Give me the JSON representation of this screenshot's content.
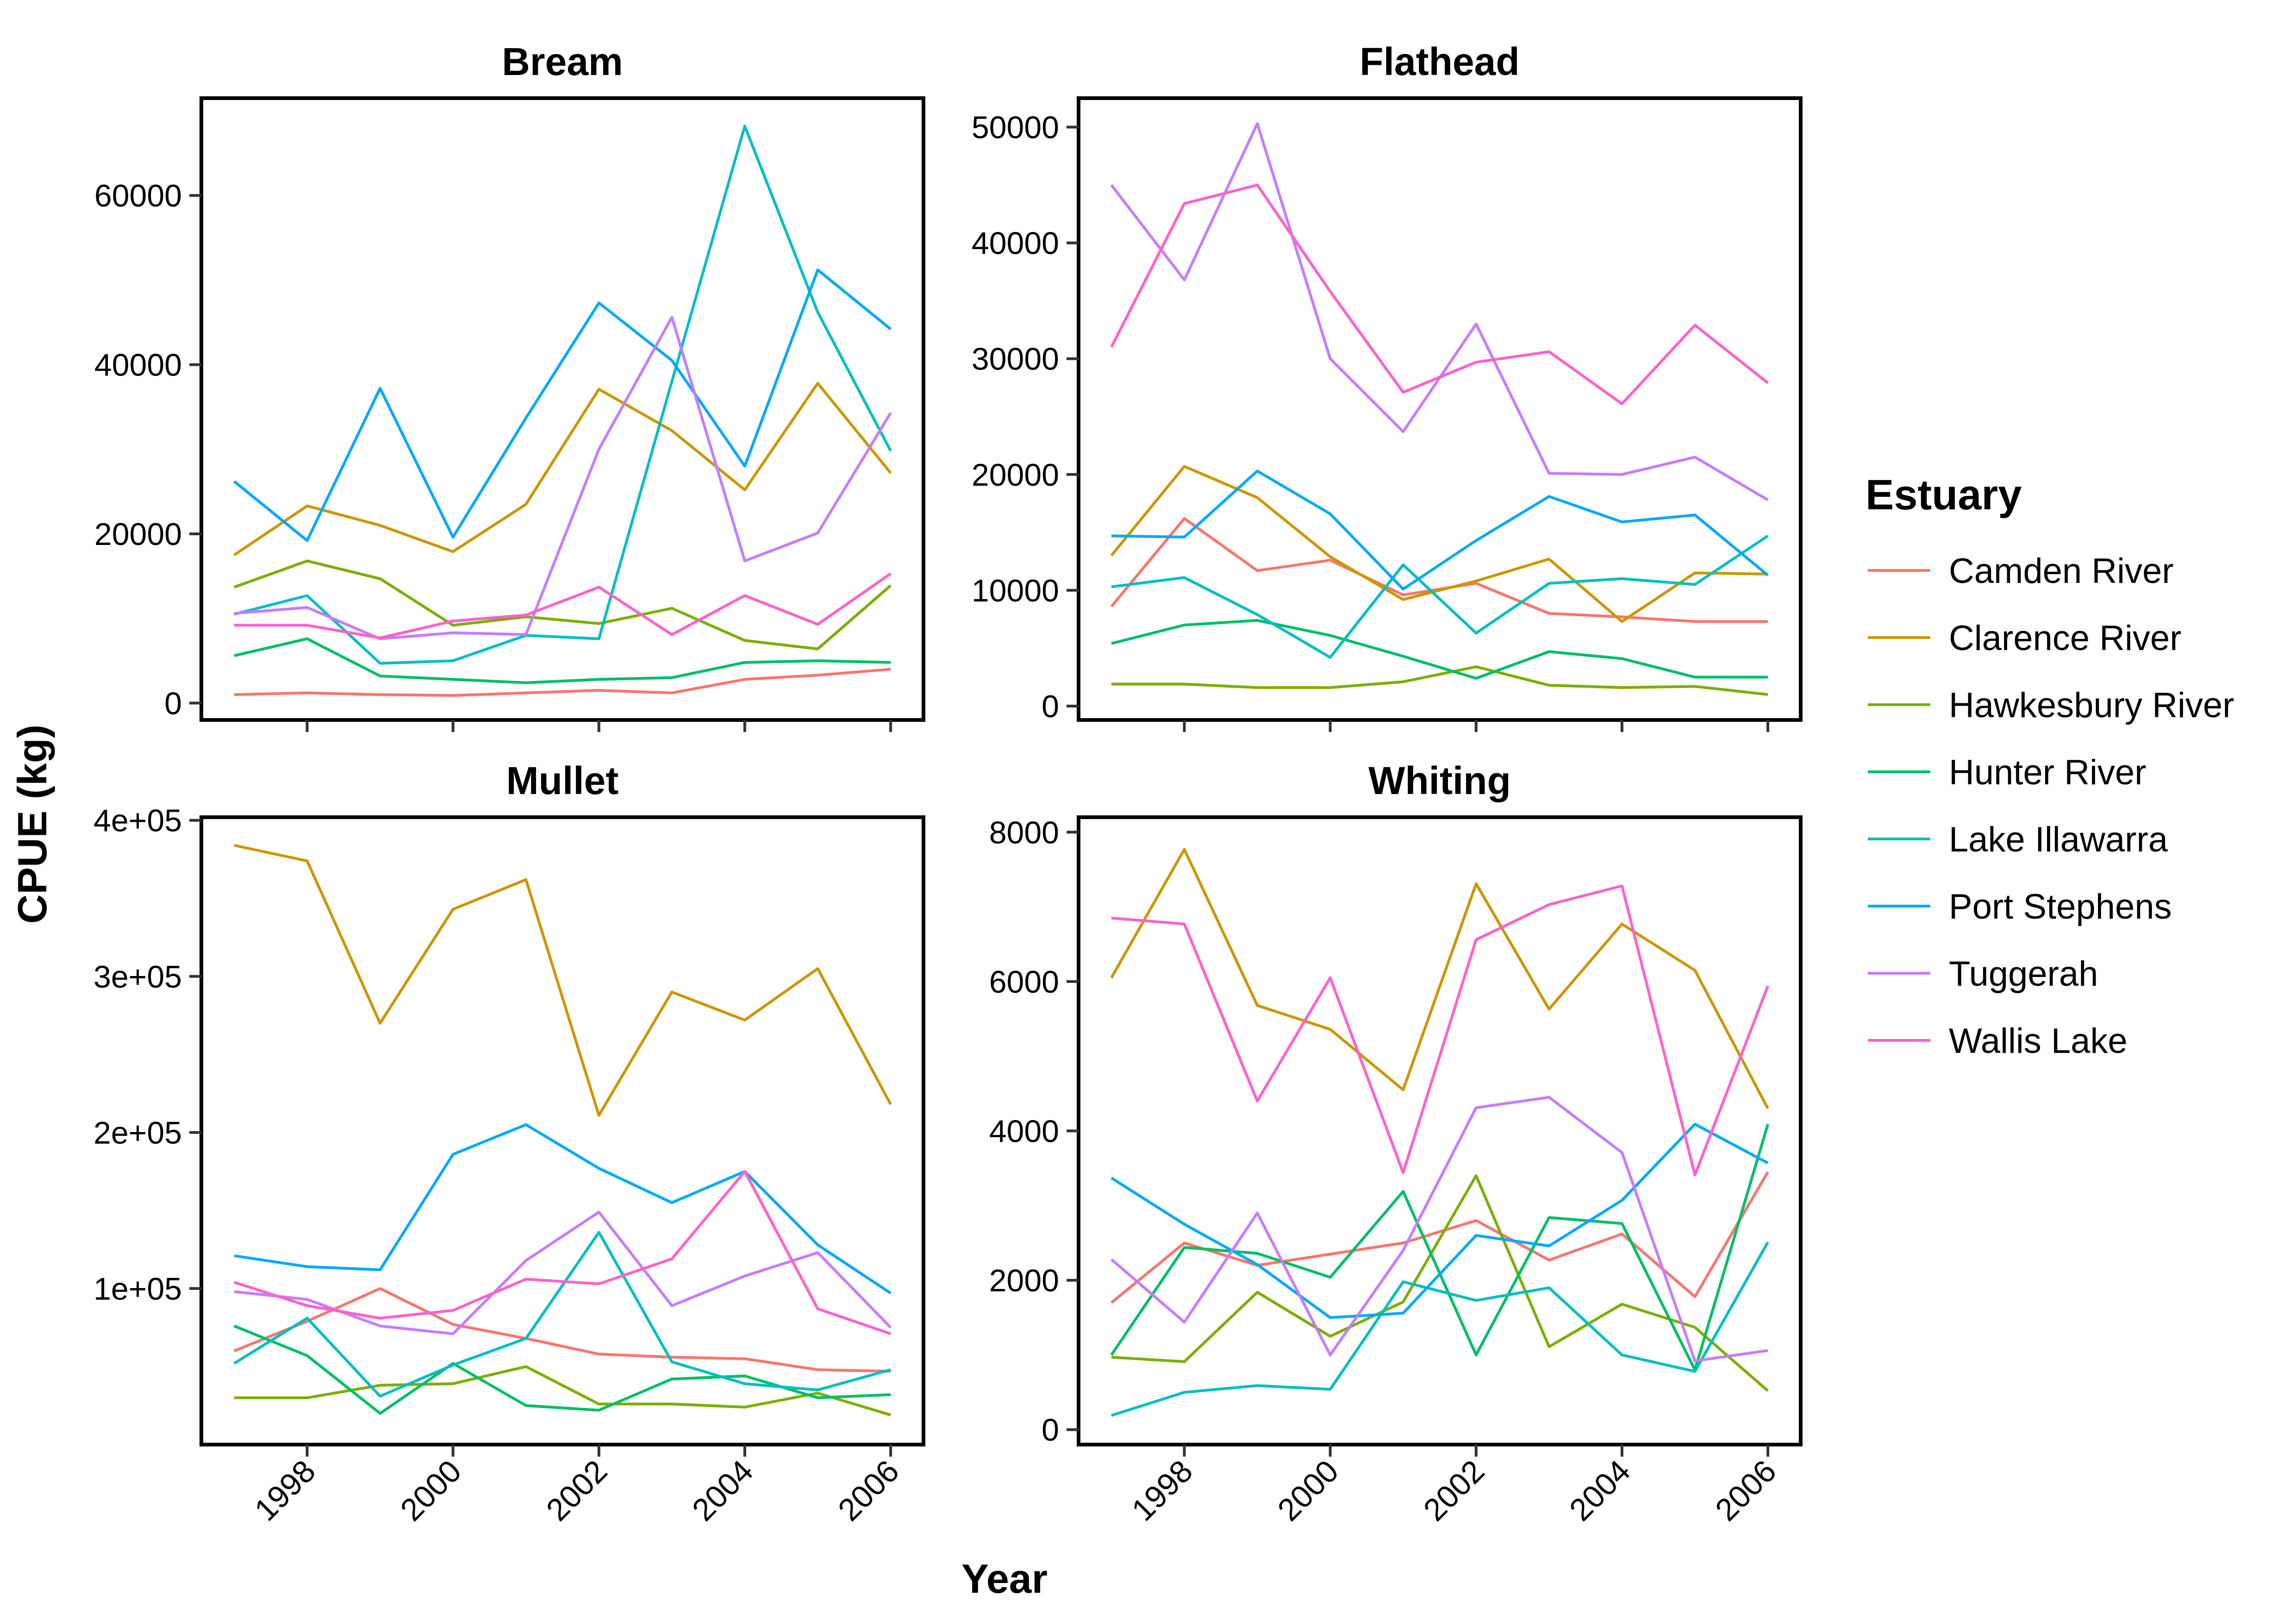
{
  "chart_data": {
    "type": "line",
    "xlabel": "Year",
    "ylabel": "CPUE (kg)",
    "legend": {
      "title": "Estuary",
      "placement": "right"
    },
    "series_meta": [
      {
        "name": "Camden River",
        "color": "#F8766D"
      },
      {
        "name": "Clarence River",
        "color": "#CD9600"
      },
      {
        "name": "Hawkesbury River",
        "color": "#7CAE00"
      },
      {
        "name": "Hunter River",
        "color": "#00BE67"
      },
      {
        "name": "Lake Illawarra",
        "color": "#00BFC4"
      },
      {
        "name": "Port Stephens",
        "color": "#00A9FF"
      },
      {
        "name": "Tuggerah",
        "color": "#C77CFF"
      },
      {
        "name": "Wallis Lake",
        "color": "#FF61CC"
      }
    ],
    "x": [
      1997,
      1998,
      1999,
      2000,
      2001,
      2002,
      2003,
      2004,
      2005,
      2006
    ],
    "x_ticks": [
      1998,
      2000,
      2002,
      2004,
      2006
    ],
    "grid": false,
    "panels": [
      {
        "title": "Bream",
        "ylim": [
          -2000,
          71500
        ],
        "y_ticks": [
          0,
          20000,
          40000,
          60000
        ],
        "y_tick_labels": [
          "0",
          "20000",
          "40000",
          "60000"
        ],
        "series": [
          {
            "name": "Camden River",
            "values": [
              1000,
              1200,
              1000,
              900,
              1200,
              1500,
              1200,
              2800,
              3300,
              4000
            ]
          },
          {
            "name": "Clarence River",
            "values": [
              17500,
              23300,
              21000,
              17900,
              23500,
              37100,
              32200,
              25200,
              37800,
              27200
            ]
          },
          {
            "name": "Hawkesbury River",
            "values": [
              13700,
              16800,
              14700,
              9200,
              10200,
              9400,
              11200,
              7400,
              6400,
              13900
            ]
          },
          {
            "name": "Hunter River",
            "values": [
              5600,
              7600,
              3200,
              2800,
              2400,
              2800,
              3000,
              4800,
              5000,
              4800
            ]
          },
          {
            "name": "Lake Illawarra",
            "values": [
              10500,
              12700,
              4700,
              5000,
              8000,
              7600,
              38000,
              68200,
              46200,
              29800
            ]
          },
          {
            "name": "Port Stephens",
            "values": [
              26200,
              19200,
              37200,
              19600,
              33700,
              47300,
              40500,
              28000,
              51200,
              44200
            ]
          },
          {
            "name": "Tuggerah",
            "values": [
              10600,
              11300,
              7600,
              8300,
              8100,
              30000,
              45600,
              16800,
              20100,
              34300
            ]
          },
          {
            "name": "Wallis Lake",
            "values": [
              9200,
              9200,
              7700,
              9700,
              10400,
              13700,
              8100,
              12700,
              9300,
              15300
            ]
          }
        ]
      },
      {
        "title": "Flathead",
        "ylim": [
          -1200,
          52500
        ],
        "y_ticks": [
          0,
          10000,
          20000,
          30000,
          40000,
          50000
        ],
        "y_tick_labels": [
          "0",
          "10000",
          "20000",
          "30000",
          "40000",
          "50000"
        ],
        "series": [
          {
            "name": "Camden River",
            "values": [
              8600,
              16200,
              11700,
              12600,
              9600,
              10600,
              8000,
              7700,
              7300,
              7300
            ]
          },
          {
            "name": "Clarence River",
            "values": [
              13000,
              20700,
              18000,
              12900,
              9200,
              10800,
              12700,
              7300,
              11500,
              11400
            ]
          },
          {
            "name": "Hawkesbury River",
            "values": [
              1900,
              1900,
              1600,
              1600,
              2100,
              3400,
              1800,
              1600,
              1700,
              1000
            ]
          },
          {
            "name": "Hunter River",
            "values": [
              5400,
              7000,
              7400,
              6100,
              4300,
              2400,
              4700,
              4100,
              2500,
              2500
            ]
          },
          {
            "name": "Lake Illawarra",
            "values": [
              10300,
              11100,
              7900,
              4200,
              12200,
              6300,
              10600,
              11000,
              10500,
              14700
            ]
          },
          {
            "name": "Port Stephens",
            "values": [
              14700,
              14600,
              20300,
              16600,
              10100,
              14300,
              18100,
              15900,
              16500,
              11300
            ]
          },
          {
            "name": "Tuggerah",
            "values": [
              45000,
              36800,
              50300,
              30000,
              23700,
              33000,
              20100,
              20000,
              21500,
              17800
            ]
          },
          {
            "name": "Wallis Lake",
            "values": [
              31000,
              43400,
              45000,
              35800,
              27100,
              29700,
              30600,
              26100,
              32900,
              27900
            ]
          }
        ]
      },
      {
        "title": "Mullet",
        "ylim": [
          0,
          402000
        ],
        "y_ticks": [
          100000,
          200000,
          300000,
          400000
        ],
        "y_tick_labels": [
          "1e+05",
          "2e+05",
          "3e+05",
          "4e+05"
        ],
        "series": [
          {
            "name": "Camden River",
            "values": [
              60000,
              79000,
              100000,
              77000,
              68000,
              58000,
              56000,
              55000,
              48000,
              47000
            ]
          },
          {
            "name": "Clarence River",
            "values": [
              384000,
              374000,
              270000,
              343000,
              362000,
              211000,
              290000,
              272000,
              305000,
              218000
            ]
          },
          {
            "name": "Hawkesbury River",
            "values": [
              30000,
              30000,
              38000,
              39000,
              50000,
              26000,
              26000,
              24000,
              33000,
              19000
            ]
          },
          {
            "name": "Hunter River",
            "values": [
              76000,
              57000,
              20000,
              52000,
              25000,
              22000,
              42000,
              44000,
              30000,
              32000
            ]
          },
          {
            "name": "Lake Illawarra",
            "values": [
              52000,
              81000,
              31000,
              51000,
              68000,
              136000,
              53000,
              39000,
              35000,
              48000
            ]
          },
          {
            "name": "Port Stephens",
            "values": [
              121000,
              114000,
              112000,
              186000,
              205000,
              177000,
              155000,
              175000,
              128000,
              97000
            ]
          },
          {
            "name": "Tuggerah",
            "values": [
              98000,
              93000,
              76000,
              71000,
              118000,
              149000,
              89000,
              108000,
              123000,
              75000
            ]
          },
          {
            "name": "Wallis Lake",
            "values": [
              104000,
              89000,
              81000,
              86000,
              106000,
              103000,
              119000,
              175000,
              87000,
              71000
            ]
          }
        ]
      },
      {
        "title": "Whiting",
        "ylim": [
          -200,
          8200
        ],
        "y_ticks": [
          0,
          2000,
          4000,
          6000,
          8000
        ],
        "y_tick_labels": [
          "0",
          "2000",
          "4000",
          "6000",
          "8000"
        ],
        "series": [
          {
            "name": "Camden River",
            "values": [
              1700,
              2500,
              2200,
              2350,
              2500,
              2800,
              2270,
              2620,
              1780,
              3450
            ]
          },
          {
            "name": "Clarence River",
            "values": [
              6050,
              7770,
              5680,
              5360,
              4550,
              7310,
              5630,
              6770,
              6150,
              4300
            ]
          },
          {
            "name": "Hawkesbury River",
            "values": [
              970,
              910,
              1840,
              1250,
              1710,
              3400,
              1110,
              1680,
              1370,
              520
            ]
          },
          {
            "name": "Hunter River",
            "values": [
              1000,
              2440,
              2360,
              2040,
              3190,
              1000,
              2840,
              2760,
              800,
              4090
            ]
          },
          {
            "name": "Lake Illawarra",
            "values": [
              190,
              500,
              590,
              540,
              1980,
              1730,
              1900,
              1000,
              780,
              2510
            ]
          },
          {
            "name": "Port Stephens",
            "values": [
              3370,
              2750,
              2210,
              1500,
              1560,
              2600,
              2460,
              3070,
              4090,
              3570
            ]
          },
          {
            "name": "Tuggerah",
            "values": [
              2280,
              1440,
              2900,
              1000,
              2400,
              4310,
              4450,
              3710,
              920,
              1060
            ]
          },
          {
            "name": "Wallis Lake",
            "values": [
              6850,
              6770,
              4400,
              6050,
              3440,
              6560,
              7030,
              7280,
              3410,
              5940
            ]
          }
        ]
      }
    ]
  }
}
